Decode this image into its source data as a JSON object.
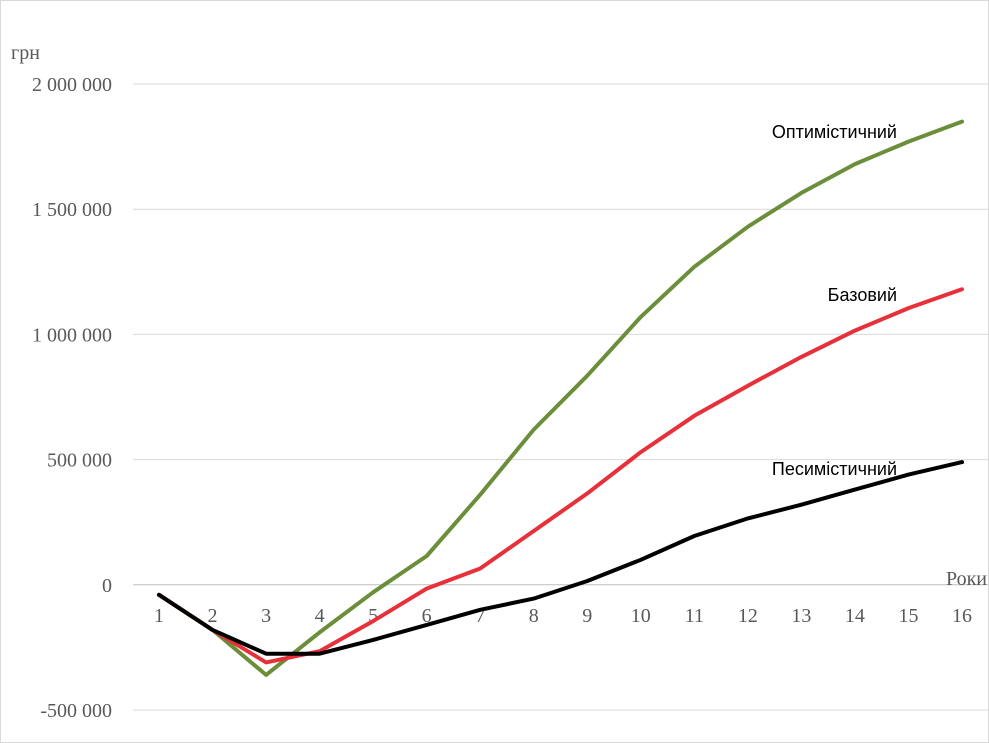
{
  "chart_data": {
    "type": "line",
    "ylabel": "грн",
    "xlabel": "Роки",
    "ylim": [
      -500000,
      2000000
    ],
    "y_ticks": [
      -500000,
      0,
      500000,
      1000000,
      1500000,
      2000000
    ],
    "y_tick_labels": [
      "-500 000",
      "0",
      "500 000",
      "1 000 000",
      "1 500 000",
      "2 000 000"
    ],
    "grid": true,
    "categories": [
      "1",
      "2",
      "3",
      "4",
      "5",
      "6",
      "7",
      "8",
      "9",
      "10",
      "11",
      "12",
      "13",
      "14",
      "15",
      "16"
    ],
    "series": [
      {
        "name": "Оптимістичний",
        "color": "#6b8e3a",
        "values": [
          -40000,
          -180000,
          -360000,
          -190000,
          -30000,
          115000,
          360000,
          620000,
          835000,
          1070000,
          1270000,
          1430000,
          1565000,
          1680000,
          1770000,
          1850000
        ]
      },
      {
        "name": "Базовий",
        "color": "#e8303a",
        "values": [
          -40000,
          -180000,
          -310000,
          -265000,
          -145000,
          -15000,
          65000,
          215000,
          365000,
          530000,
          675000,
          795000,
          910000,
          1015000,
          1105000,
          1180000
        ]
      },
      {
        "name": "Песимістичний",
        "color": "#000000",
        "values": [
          -40000,
          -180000,
          -275000,
          -275000,
          -220000,
          -160000,
          -100000,
          -55000,
          15000,
          100000,
          195000,
          265000,
          320000,
          380000,
          440000,
          490000
        ]
      }
    ]
  }
}
